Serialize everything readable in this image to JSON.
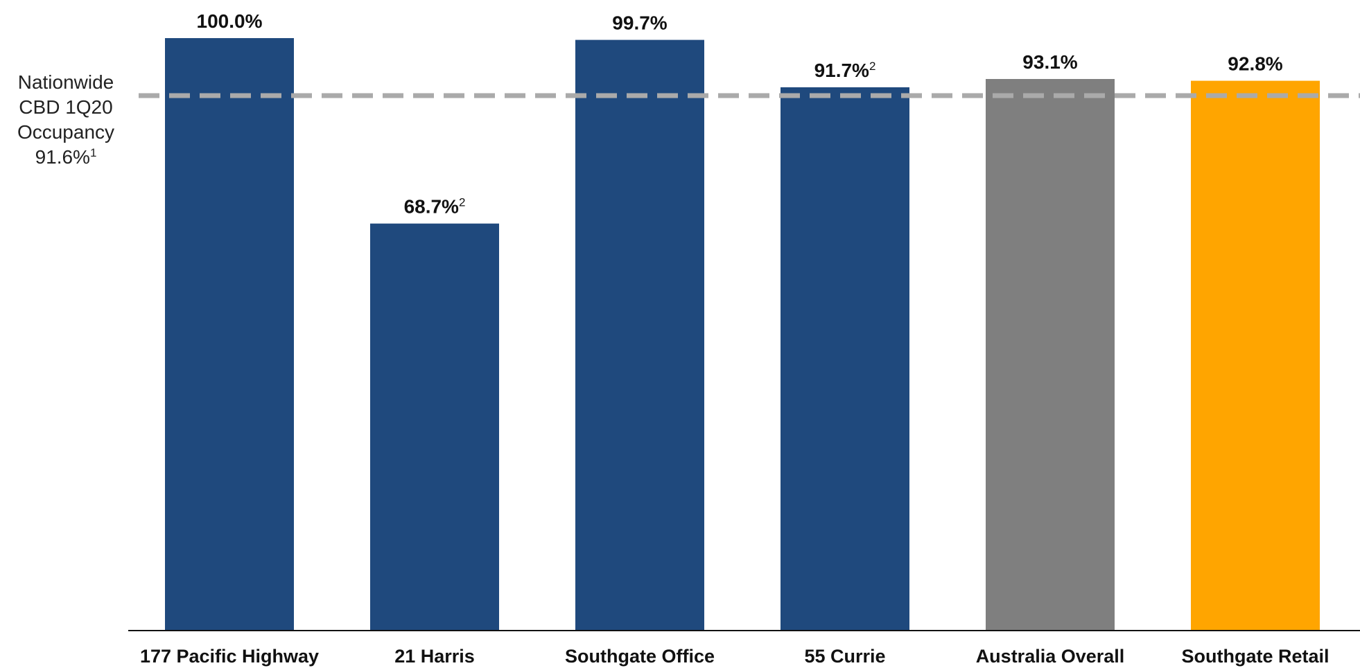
{
  "chart_data": {
    "type": "bar",
    "categories": [
      "177 Pacific Highway",
      "21 Harris",
      "Southgate Office",
      "55 Currie",
      "Australia Overall",
      "Southgate Retail"
    ],
    "values": [
      100.0,
      68.7,
      99.7,
      91.7,
      93.1,
      92.8
    ],
    "data_labels": [
      "100.0%",
      "68.7%",
      "99.7%",
      "91.7%",
      "93.1%",
      "92.8%"
    ],
    "label_superscripts": [
      "",
      "2",
      "",
      "2",
      "",
      ""
    ],
    "colors": [
      "#1F497D",
      "#1F497D",
      "#1F497D",
      "#1F497D",
      "#7F7F7F",
      "#FFA500"
    ],
    "ylim": [
      0,
      100
    ],
    "title": "",
    "xlabel": "",
    "ylabel": "",
    "grid": false,
    "reference_line": {
      "value": 91.6,
      "style": "dashed",
      "color": "#AAAAAA",
      "label_lines": [
        "Nationwide",
        "CBD 1Q20",
        "Occupancy",
        "91.6%"
      ],
      "label_superscript": "1"
    }
  }
}
